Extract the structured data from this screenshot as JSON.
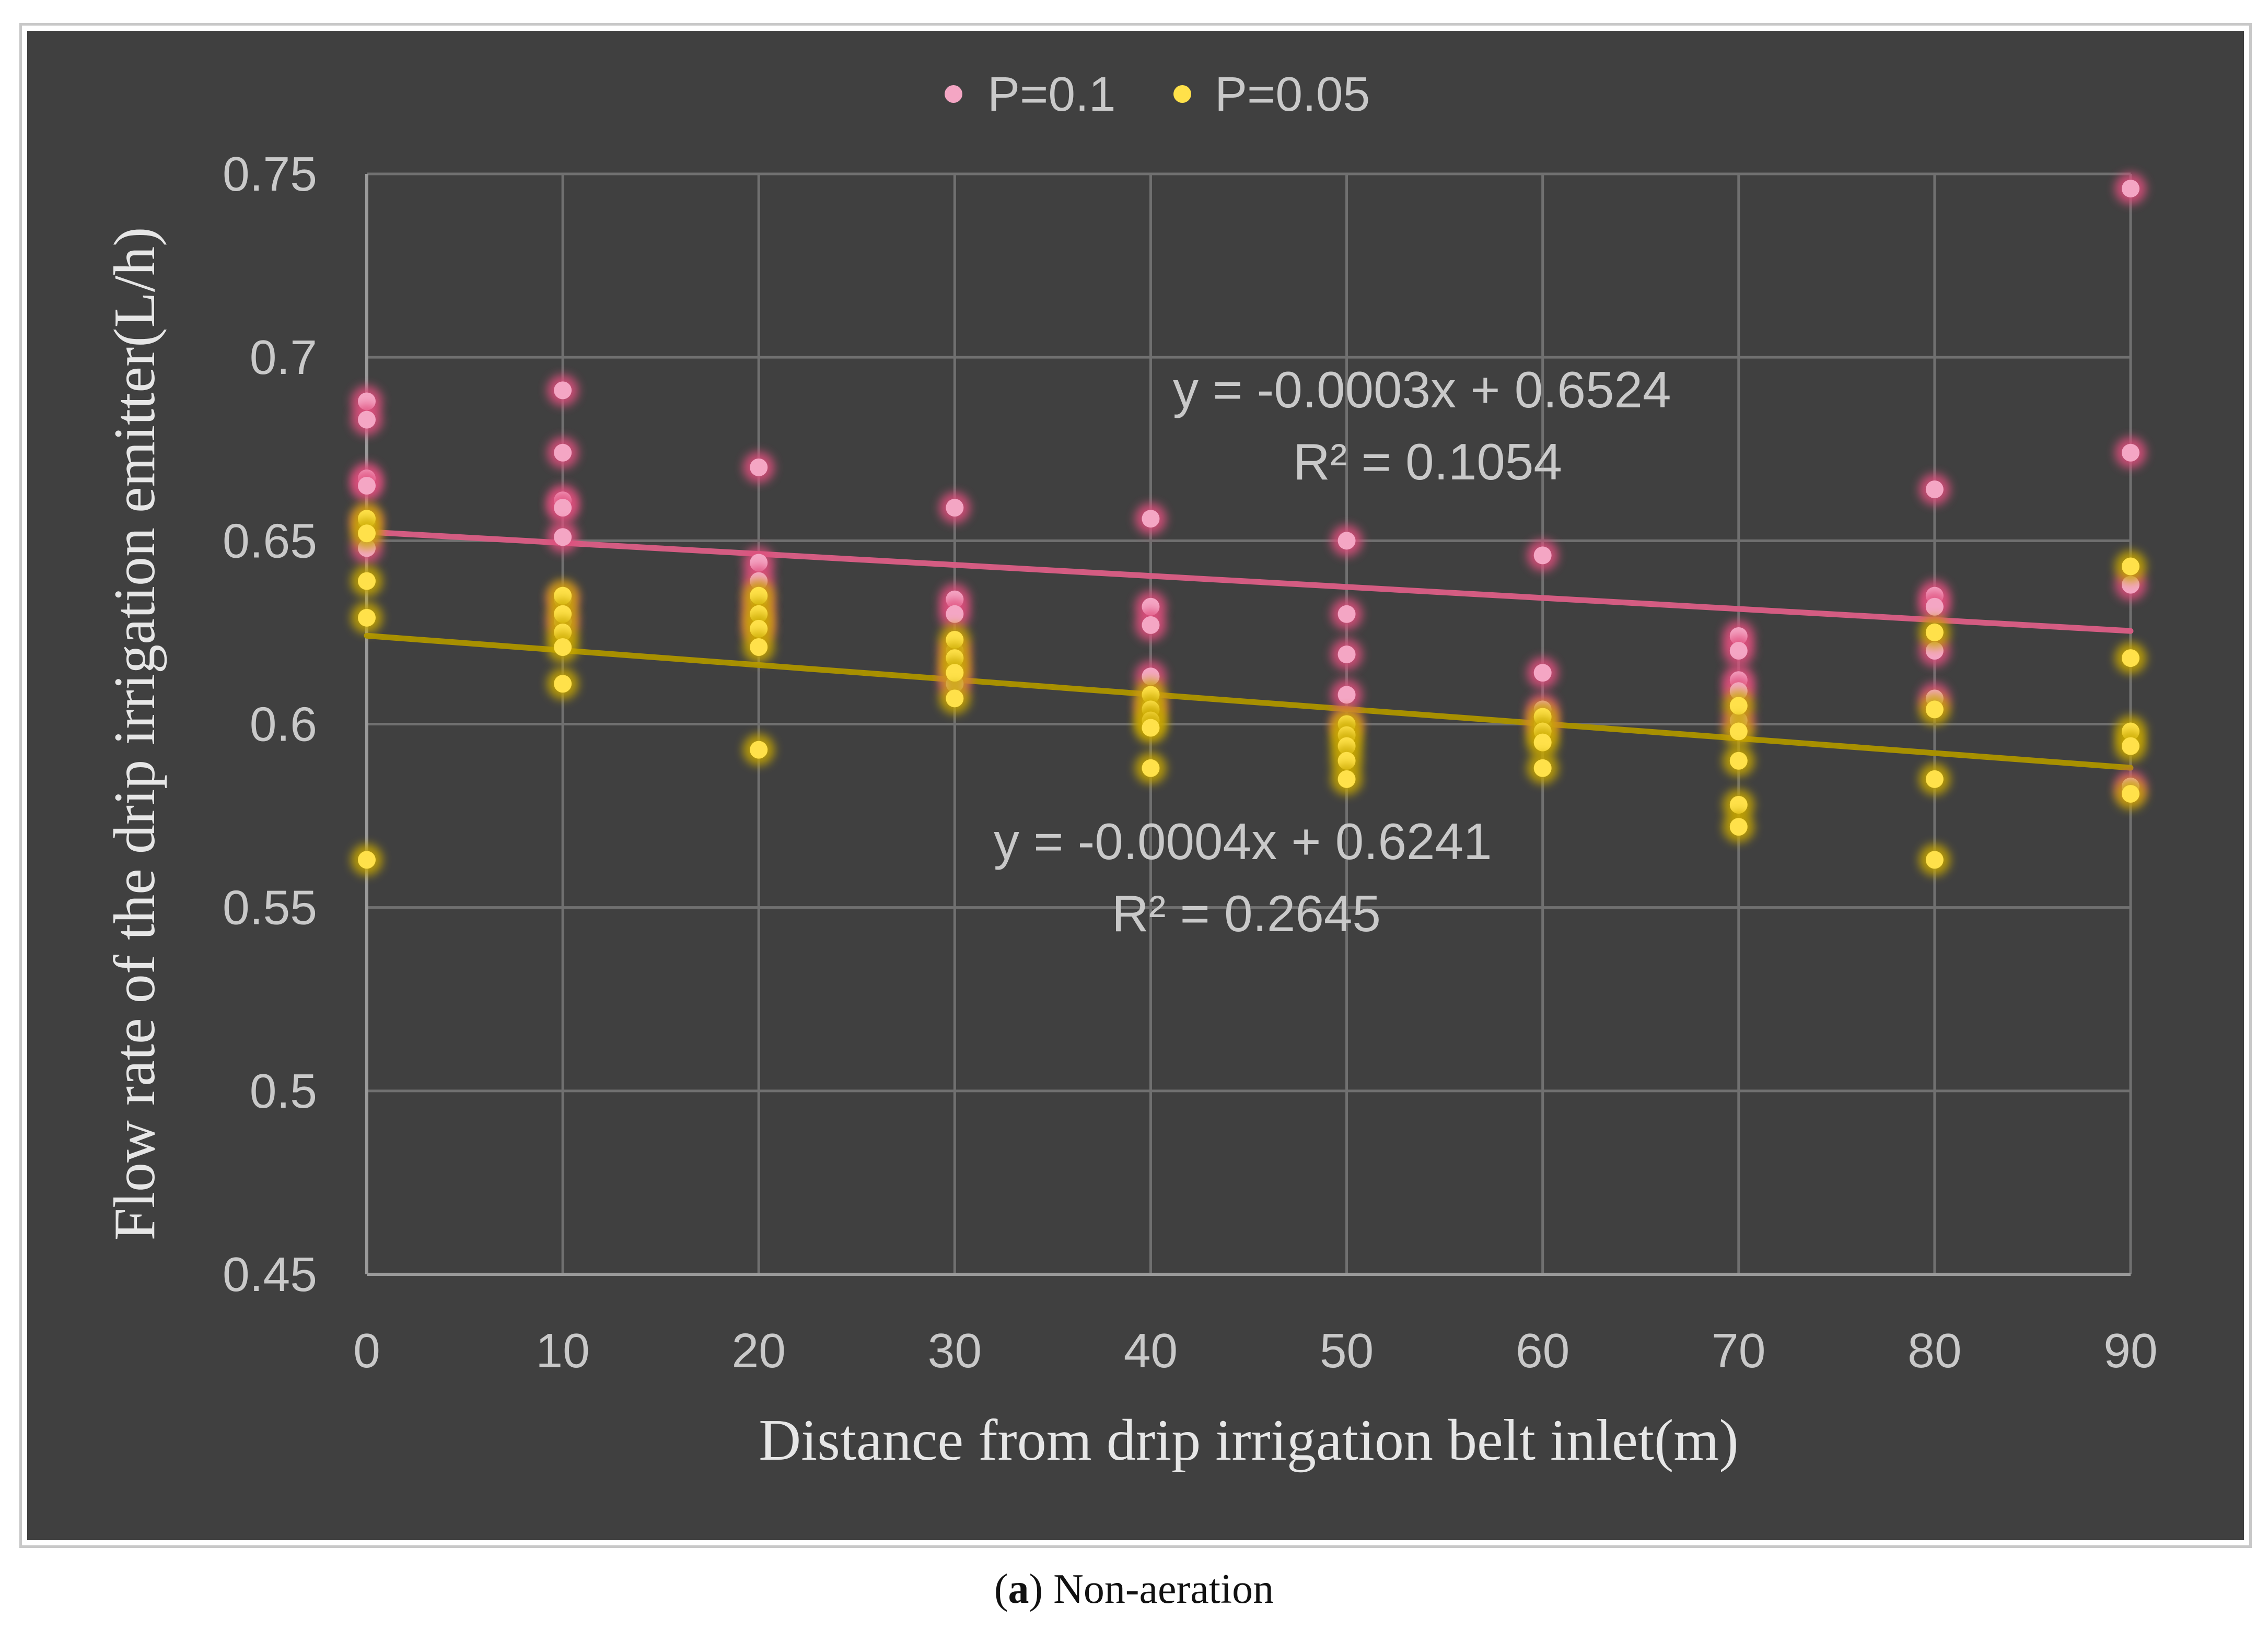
{
  "chart_data": {
    "type": "scatter",
    "title": "",
    "xlabel": "Distance from drip irrigation belt inlet(m)",
    "ylabel": "Flow rate of the drip irrigation emitter(L/h)",
    "xlim": [
      0,
      90
    ],
    "ylim": [
      0.45,
      0.75
    ],
    "x_ticks": [
      0,
      10,
      20,
      30,
      40,
      50,
      60,
      70,
      80,
      90
    ],
    "y_ticks": [
      0.45,
      0.5,
      0.55,
      0.6,
      0.65,
      0.7,
      0.75
    ],
    "y_tick_labels": [
      "0.45",
      "0.5",
      "0.55",
      "0.6",
      "0.65",
      "0.7",
      "0.75"
    ],
    "grid": true,
    "legend_position": "top-center",
    "series": [
      {
        "name": "P=0.1",
        "color": "#f4a6c4",
        "glow": "#e0507e",
        "points": [
          [
            0,
            0.688
          ],
          [
            0,
            0.683
          ],
          [
            0,
            0.667
          ],
          [
            0,
            0.665
          ],
          [
            0,
            0.655
          ],
          [
            0,
            0.648
          ],
          [
            10,
            0.691
          ],
          [
            10,
            0.674
          ],
          [
            10,
            0.661
          ],
          [
            10,
            0.659
          ],
          [
            10,
            0.651
          ],
          [
            10,
            0.634
          ],
          [
            10,
            0.628
          ],
          [
            20,
            0.67
          ],
          [
            20,
            0.644
          ],
          [
            20,
            0.639
          ],
          [
            20,
            0.634
          ],
          [
            20,
            0.63
          ],
          [
            20,
            0.626
          ],
          [
            30,
            0.659
          ],
          [
            30,
            0.634
          ],
          [
            30,
            0.63
          ],
          [
            30,
            0.62
          ],
          [
            30,
            0.615
          ],
          [
            30,
            0.611
          ],
          [
            40,
            0.656
          ],
          [
            40,
            0.632
          ],
          [
            40,
            0.627
          ],
          [
            40,
            0.613
          ],
          [
            40,
            0.605
          ],
          [
            50,
            0.65
          ],
          [
            50,
            0.63
          ],
          [
            50,
            0.619
          ],
          [
            50,
            0.608
          ],
          [
            50,
            0.6
          ],
          [
            60,
            0.646
          ],
          [
            60,
            0.614
          ],
          [
            60,
            0.604
          ],
          [
            60,
            0.6
          ],
          [
            70,
            0.624
          ],
          [
            70,
            0.62
          ],
          [
            70,
            0.612
          ],
          [
            70,
            0.609
          ],
          [
            70,
            0.601
          ],
          [
            80,
            0.664
          ],
          [
            80,
            0.635
          ],
          [
            80,
            0.632
          ],
          [
            80,
            0.62
          ],
          [
            80,
            0.607
          ],
          [
            90,
            0.746
          ],
          [
            90,
            0.674
          ],
          [
            90,
            0.638
          ],
          [
            90,
            0.583
          ]
        ],
        "trendline": {
          "slope": -0.0003,
          "intercept": 0.6524,
          "color": "#d45c82"
        },
        "equation": "y = -0.0003x + 0.6524",
        "r_squared": "R² = 0.1054"
      },
      {
        "name": "P=0.05",
        "color": "#ffe14a",
        "glow": "#c9a800",
        "points": [
          [
            0,
            0.656
          ],
          [
            0,
            0.652
          ],
          [
            0,
            0.639
          ],
          [
            0,
            0.629
          ],
          [
            0,
            0.563
          ],
          [
            10,
            0.635
          ],
          [
            10,
            0.63
          ],
          [
            10,
            0.625
          ],
          [
            10,
            0.621
          ],
          [
            10,
            0.611
          ],
          [
            20,
            0.635
          ],
          [
            20,
            0.63
          ],
          [
            20,
            0.626
          ],
          [
            20,
            0.621
          ],
          [
            20,
            0.593
          ],
          [
            30,
            0.623
          ],
          [
            30,
            0.618
          ],
          [
            30,
            0.614
          ],
          [
            30,
            0.607
          ],
          [
            40,
            0.608
          ],
          [
            40,
            0.604
          ],
          [
            40,
            0.601
          ],
          [
            40,
            0.599
          ],
          [
            40,
            0.588
          ],
          [
            50,
            0.6
          ],
          [
            50,
            0.597
          ],
          [
            50,
            0.594
          ],
          [
            50,
            0.59
          ],
          [
            50,
            0.585
          ],
          [
            60,
            0.602
          ],
          [
            60,
            0.598
          ],
          [
            60,
            0.595
          ],
          [
            60,
            0.588
          ],
          [
            70,
            0.605
          ],
          [
            70,
            0.598
          ],
          [
            70,
            0.59
          ],
          [
            70,
            0.578
          ],
          [
            70,
            0.572
          ],
          [
            80,
            0.625
          ],
          [
            80,
            0.604
          ],
          [
            80,
            0.585
          ],
          [
            80,
            0.563
          ],
          [
            90,
            0.643
          ],
          [
            90,
            0.618
          ],
          [
            90,
            0.598
          ],
          [
            90,
            0.594
          ],
          [
            90,
            0.581
          ]
        ],
        "trendline": {
          "slope": -0.0004,
          "intercept": 0.6241,
          "color": "#a89000"
        },
        "equation": "y = -0.0004x + 0.6241",
        "r_squared": "R² = 0.2645"
      }
    ]
  },
  "caption": {
    "label": "a",
    "text": "Non-aeration"
  },
  "colors": {
    "plot_background": "#404040",
    "grid": "#707070",
    "axis": "#9a9a9a"
  }
}
